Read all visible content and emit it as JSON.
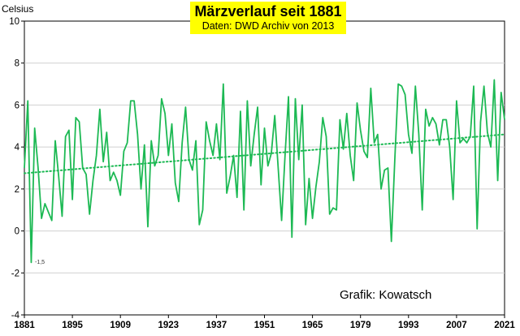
{
  "header": {
    "title": "Märzverlauf seit 1881",
    "subtitle": "Daten: DWD Archiv von 2013"
  },
  "unit_label": "Celsius",
  "credit": "Grafik: Kowatsch",
  "annotation": "-1,5",
  "colors": {
    "line": "#1db954",
    "trend": "#1db954",
    "grid": "#d0d0d0",
    "title_bg": "#ffff00"
  },
  "chart_data": {
    "type": "line",
    "title": "Märzverlauf seit 1881",
    "subtitle": "Daten: DWD Archiv von 2013",
    "ylabel": "Celsius",
    "xlabel": "",
    "xlim": [
      1881,
      2021
    ],
    "ylim": [
      -4,
      10
    ],
    "x_ticks": [
      "1881",
      "1895",
      "1909",
      "1923",
      "1937",
      "1951",
      "1965",
      "1979",
      "1993",
      "2007",
      "2021"
    ],
    "y_ticks": [
      "-4",
      "-2",
      "0",
      "2",
      "4",
      "6",
      "8",
      "10"
    ],
    "grid": "horizontal",
    "x_start": 1881,
    "series": [
      {
        "name": "",
        "style": "solid",
        "values": [
          3.0,
          6.2,
          -1.5,
          4.9,
          3.0,
          0.6,
          1.3,
          0.9,
          0.5,
          4.3,
          2.6,
          0.7,
          4.5,
          4.8,
          1.5,
          5.4,
          5.2,
          3.0,
          2.7,
          0.8,
          2.4,
          3.6,
          5.8,
          3.3,
          4.7,
          2.4,
          2.8,
          2.4,
          1.7,
          3.8,
          4.2,
          6.2,
          6.2,
          4.6,
          2.0,
          4.1,
          0.2,
          4.3,
          3.1,
          3.6,
          6.3,
          5.6,
          3.6,
          5.1,
          2.3,
          1.4,
          4.2,
          5.9,
          3.4,
          2.9,
          4.3,
          0.3,
          1.0,
          5.2,
          4.3,
          3.6,
          5.1,
          3.4,
          7.0,
          1.8,
          2.6,
          3.6,
          1.6,
          5.7,
          1.0,
          6.2,
          3.1,
          4.6,
          5.9,
          2.2,
          4.9,
          3.1,
          3.7,
          5.5,
          3.0,
          0.5,
          3.6,
          6.4,
          -0.3,
          6.3,
          3.4,
          6.0,
          0.3,
          2.5,
          0.6,
          2.1,
          3.3,
          5.4,
          4.5,
          0.8,
          1.1,
          1.0,
          5.3,
          3.9,
          5.6,
          3.6,
          2.4,
          6.1,
          4.8,
          3.8,
          3.5,
          6.8,
          4.2,
          4.6,
          2.0,
          2.9,
          3.0,
          -0.5,
          3.4,
          7.0,
          6.9,
          6.5,
          4.6,
          3.7,
          6.9,
          4.6,
          1.0,
          5.8,
          5.0,
          5.4,
          5.1,
          4.1,
          5.3,
          5.3,
          4.0,
          1.5,
          6.2,
          4.2,
          4.4,
          4.2,
          4.5,
          6.9,
          0.1,
          5.2,
          6.9,
          4.7,
          4.0,
          7.2,
          2.4,
          6.6,
          5.3
        ]
      }
    ],
    "trend": {
      "style": "dotted",
      "start": [
        1881,
        2.75
      ],
      "end": [
        2021,
        4.6
      ]
    }
  }
}
